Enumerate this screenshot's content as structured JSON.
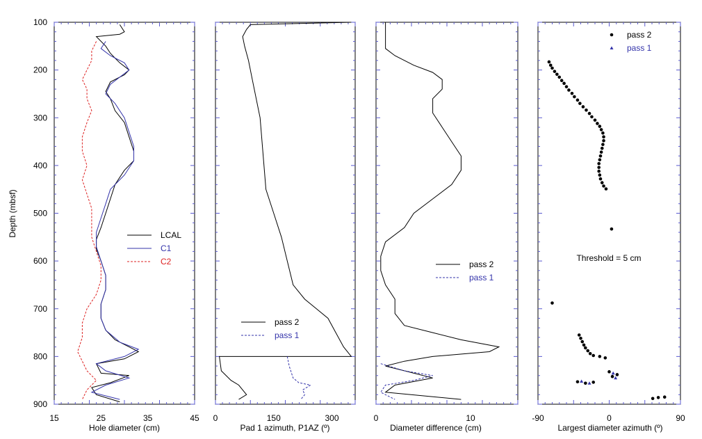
{
  "figure": {
    "ylabel": "Depth (mbsf)",
    "y_ticks": [
      "100",
      "200",
      "300",
      "400",
      "500",
      "600",
      "700",
      "800",
      "900"
    ]
  },
  "colors": {
    "black": "#000000",
    "blue": "#3333aa",
    "red": "#dd2222",
    "tick": "#5a5ad0"
  },
  "chart_data": [
    {
      "type": "line",
      "xlabel": "Hole diameter (cm)",
      "xlim": [
        15,
        45
      ],
      "ylim": [
        100,
        900
      ],
      "x_ticks": [
        "15",
        "25",
        "35",
        "45"
      ],
      "legend_position": "middle-right",
      "series": [
        {
          "name": "LCAL",
          "style": "solid",
          "color": "#000000",
          "points": [
            [
              29,
              105
            ],
            [
              30,
              120
            ],
            [
              29,
              125
            ],
            [
              24,
              130
            ],
            [
              26,
              150
            ],
            [
              27,
              165
            ],
            [
              28,
              175
            ],
            [
              29,
              185
            ],
            [
              31,
              200
            ],
            [
              30,
              210
            ],
            [
              27,
              225
            ],
            [
              26,
              245
            ],
            [
              27,
              260
            ],
            [
              28,
              285
            ],
            [
              30,
              310
            ],
            [
              31,
              340
            ],
            [
              32,
              370
            ],
            [
              32,
              390
            ],
            [
              30,
              410
            ],
            [
              28,
              440
            ],
            [
              27,
              470
            ],
            [
              26,
              500
            ],
            [
              25,
              530
            ],
            [
              24,
              555
            ],
            [
              24,
              575
            ],
            [
              25,
              600
            ],
            [
              26,
              630
            ],
            [
              26,
              660
            ],
            [
              25,
              690
            ],
            [
              25,
              720
            ],
            [
              26,
              745
            ],
            [
              28,
              765
            ],
            [
              31,
              780
            ],
            [
              33,
              790
            ],
            [
              30,
              805
            ],
            [
              24,
              815
            ],
            [
              25,
              835
            ],
            [
              31,
              840
            ],
            [
              27,
              855
            ],
            [
              23,
              865
            ],
            [
              24,
              880
            ],
            [
              29,
              895
            ]
          ]
        },
        {
          "name": "C1",
          "style": "solid",
          "color": "#3333aa",
          "points": [
            [
              26,
              140
            ],
            [
              25,
              155
            ],
            [
              27,
              170
            ],
            [
              30,
              185
            ],
            [
              31,
              200
            ],
            [
              29,
              215
            ],
            [
              27,
              230
            ],
            [
              26,
              250
            ],
            [
              28,
              270
            ],
            [
              30,
              300
            ],
            [
              31,
              330
            ],
            [
              32,
              360
            ],
            [
              32,
              390
            ],
            [
              30,
              420
            ],
            [
              27,
              450
            ],
            [
              26,
              480
            ],
            [
              25,
              510
            ],
            [
              24,
              540
            ],
            [
              24,
              570
            ],
            [
              25,
              600
            ],
            [
              26,
              630
            ],
            [
              26,
              660
            ],
            [
              25,
              690
            ],
            [
              25,
              720
            ],
            [
              26,
              745
            ],
            [
              29,
              770
            ],
            [
              33,
              785
            ],
            [
              30,
              800
            ],
            [
              24,
              815
            ],
            [
              26,
              830
            ],
            [
              31,
              845
            ],
            [
              26,
              860
            ],
            [
              23,
              875
            ],
            [
              29,
              890
            ]
          ]
        },
        {
          "name": "C2",
          "style": "dashed",
          "color": "#dd2222",
          "points": [
            [
              24,
              140
            ],
            [
              23,
              160
            ],
            [
              23,
              180
            ],
            [
              22,
              200
            ],
            [
              21,
              220
            ],
            [
              22,
              240
            ],
            [
              22,
              260
            ],
            [
              23,
              285
            ],
            [
              22,
              310
            ],
            [
              21,
              340
            ],
            [
              21,
              370
            ],
            [
              22,
              400
            ],
            [
              21,
              430
            ],
            [
              22,
              460
            ],
            [
              23,
              490
            ],
            [
              23,
              520
            ],
            [
              23,
              550
            ],
            [
              24,
              580
            ],
            [
              25,
              610
            ],
            [
              25,
              640
            ],
            [
              24,
              670
            ],
            [
              22,
              700
            ],
            [
              21,
              730
            ],
            [
              21,
              760
            ],
            [
              20,
              790
            ],
            [
              21,
              810
            ],
            [
              22,
              830
            ],
            [
              24,
              850
            ],
            [
              22,
              870
            ],
            [
              21,
              890
            ]
          ]
        }
      ]
    },
    {
      "type": "line",
      "xlabel": "Pad 1 azimuth, P1AZ (º)",
      "xlim": [
        0,
        360
      ],
      "ylim": [
        100,
        900
      ],
      "x_ticks": [
        "0",
        "150",
        "300"
      ],
      "legend_position": "lower-center",
      "series": [
        {
          "name": "pass 2",
          "style": "solid",
          "color": "#000000",
          "points": [
            [
              350,
              100
            ],
            [
              90,
              105
            ],
            [
              80,
              115
            ],
            [
              70,
              130
            ],
            [
              75,
              150
            ],
            [
              85,
              180
            ],
            [
              95,
              220
            ],
            [
              105,
              260
            ],
            [
              115,
              300
            ],
            [
              120,
              350
            ],
            [
              125,
              400
            ],
            [
              130,
              450
            ],
            [
              150,
              500
            ],
            [
              170,
              550
            ],
            [
              185,
              600
            ],
            [
              200,
              650
            ],
            [
              230,
              680
            ],
            [
              260,
              700
            ],
            [
              290,
              720
            ],
            [
              310,
              750
            ],
            [
              330,
              780
            ],
            [
              350,
              800
            ],
            [
              10,
              800
            ],
            [
              15,
              830
            ],
            [
              40,
              850
            ],
            [
              60,
              860
            ],
            [
              70,
              870
            ],
            [
              80,
              880
            ],
            [
              60,
              890
            ]
          ]
        },
        {
          "name": "pass 1",
          "style": "dashed",
          "color": "#3333aa",
          "points": [
            [
              185,
              800
            ],
            [
              190,
              820
            ],
            [
              200,
              845
            ],
            [
              215,
              855
            ],
            [
              245,
              860
            ],
            [
              225,
              870
            ],
            [
              230,
              880
            ],
            [
              220,
              890
            ]
          ]
        }
      ]
    },
    {
      "type": "line",
      "xlabel": "Diameter difference (cm)",
      "xlim": [
        0,
        15
      ],
      "ylim": [
        100,
        900
      ],
      "x_ticks": [
        "0",
        "10"
      ],
      "legend_position": "middle-right",
      "series": [
        {
          "name": "pass 2",
          "style": "solid",
          "color": "#000000",
          "points": [
            [
              1,
              100
            ],
            [
              1,
              140
            ],
            [
              1,
              155
            ],
            [
              2,
              170
            ],
            [
              4,
              190
            ],
            [
              6,
              205
            ],
            [
              7,
              220
            ],
            [
              7,
              240
            ],
            [
              6,
              260
            ],
            [
              6,
              290
            ],
            [
              7,
              320
            ],
            [
              8,
              350
            ],
            [
              9,
              380
            ],
            [
              9,
              410
            ],
            [
              8,
              440
            ],
            [
              6,
              470
            ],
            [
              4,
              500
            ],
            [
              3,
              530
            ],
            [
              1,
              560
            ],
            [
              0.5,
              590
            ],
            [
              0.5,
              620
            ],
            [
              1,
              650
            ],
            [
              2,
              680
            ],
            [
              2,
              710
            ],
            [
              3,
              735
            ],
            [
              6,
              750
            ],
            [
              9,
              765
            ],
            [
              13,
              780
            ],
            [
              12,
              790
            ],
            [
              6,
              800
            ],
            [
              3,
              810
            ],
            [
              1,
              820
            ],
            [
              4,
              835
            ],
            [
              6,
              845
            ],
            [
              2,
              860
            ],
            [
              1,
              875
            ],
            [
              9,
              890
            ]
          ]
        },
        {
          "name": "pass 1",
          "style": "dashed",
          "color": "#3333aa",
          "points": [
            [
              0.5,
              815
            ],
            [
              3,
              830
            ],
            [
              6,
              840
            ],
            [
              4,
              850
            ],
            [
              1,
              860
            ],
            [
              0.5,
              875
            ],
            [
              2,
              890
            ]
          ]
        }
      ]
    },
    {
      "type": "scatter",
      "xlabel": "Largest diameter azimuth (º)",
      "xlim": [
        -90,
        90
      ],
      "ylim": [
        100,
        900
      ],
      "x_ticks": [
        "-90",
        "0",
        "90"
      ],
      "annotation": "Threshold = 5 cm",
      "legend_position": "top-right",
      "series": [
        {
          "name": "pass 2",
          "marker": "circle",
          "color": "#000000",
          "points": [
            [
              -76,
              183
            ],
            [
              -74,
              190
            ],
            [
              -72,
              196
            ],
            [
              -69,
              203
            ],
            [
              -66,
              209
            ],
            [
              -63,
              215
            ],
            [
              -60,
              222
            ],
            [
              -57,
              228
            ],
            [
              -54,
              235
            ],
            [
              -51,
              242
            ],
            [
              -47,
              249
            ],
            [
              -44,
              256
            ],
            [
              -40,
              263
            ],
            [
              -37,
              270
            ],
            [
              -33,
              277
            ],
            [
              -29,
              284
            ],
            [
              -25,
              291
            ],
            [
              -22,
              298
            ],
            [
              -18,
              305
            ],
            [
              -15,
              312
            ],
            [
              -12,
              318
            ],
            [
              -10,
              325
            ],
            [
              -8,
              332
            ],
            [
              -7,
              340
            ],
            [
              -7,
              348
            ],
            [
              -8,
              356
            ],
            [
              -9,
              364
            ],
            [
              -10,
              372
            ],
            [
              -11,
              380
            ],
            [
              -12,
              388
            ],
            [
              -13,
              396
            ],
            [
              -13,
              404
            ],
            [
              -13,
              412
            ],
            [
              -12,
              420
            ],
            [
              -11,
              428
            ],
            [
              -9,
              436
            ],
            [
              -7,
              443
            ],
            [
              -4,
              449
            ],
            [
              3,
              533
            ],
            [
              -72,
              688
            ],
            [
              -38,
              755
            ],
            [
              -36,
              762
            ],
            [
              -34,
              769
            ],
            [
              -32,
              776
            ],
            [
              -30,
              782
            ],
            [
              -27,
              788
            ],
            [
              -24,
              794
            ],
            [
              -20,
              798
            ],
            [
              -12,
              800
            ],
            [
              -5,
              803
            ],
            [
              0,
              832
            ],
            [
              4,
              842
            ],
            [
              10,
              838
            ],
            [
              -40,
              853
            ],
            [
              -30,
              856
            ],
            [
              -20,
              854
            ],
            [
              55,
              888
            ],
            [
              62,
              886
            ],
            [
              70,
              885
            ]
          ]
        },
        {
          "name": "pass 1",
          "marker": "triangle",
          "color": "#3333aa",
          "points": [
            [
              5,
              835
            ],
            [
              8,
              845
            ],
            [
              -35,
              852
            ],
            [
              -25,
              856
            ]
          ]
        }
      ]
    }
  ]
}
